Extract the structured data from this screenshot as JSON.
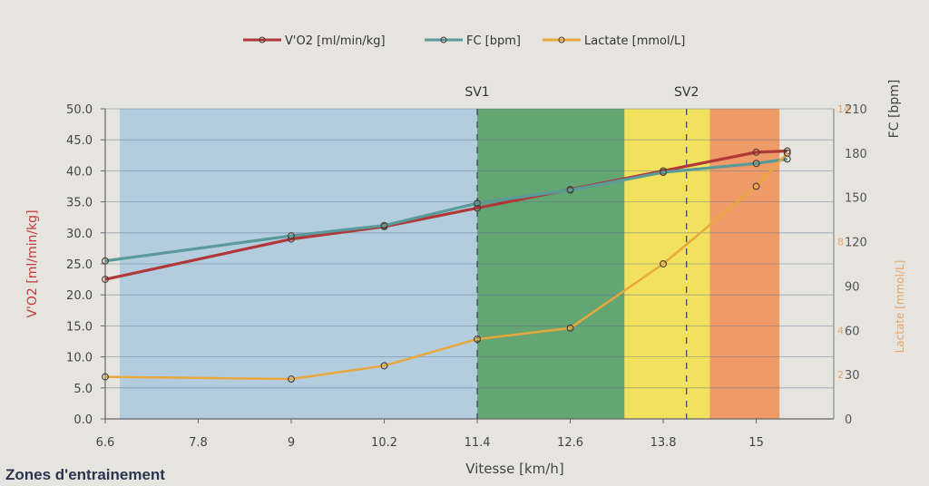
{
  "chart_data": {
    "type": "line",
    "x_axis": {
      "label": "Vitesse [km/h]",
      "range": [
        6.6,
        16.0
      ],
      "ticks": [
        "6.6",
        "7.8",
        "9",
        "10.2",
        "11.4",
        "12.6",
        "13.8",
        "15"
      ]
    },
    "y_left": {
      "label": "V'O2 [ml/min/kg]",
      "range": [
        0,
        50
      ],
      "ticks": [
        "0.0",
        "5.0",
        "10.0",
        "15.0",
        "20.0",
        "25.0",
        "30.0",
        "35.0",
        "40.0",
        "45.0",
        "50.0"
      ]
    },
    "y_right_fc": {
      "label": "FC [bpm]",
      "range": [
        0,
        210
      ],
      "ticks": [
        "0",
        "30",
        "60",
        "90",
        "120",
        "150",
        "180",
        "210"
      ]
    },
    "y_right_lactate": {
      "label": "Lactate [mmol/L]",
      "range": [
        0,
        14
      ],
      "ticks": [
        "2",
        "4",
        "8",
        "14"
      ]
    },
    "zones": [
      {
        "from": 6.6,
        "to": 11.4,
        "color": "#a9c9df"
      },
      {
        "from": 11.4,
        "to": 13.3,
        "color": "#4c9a62"
      },
      {
        "from": 13.3,
        "to": 14.4,
        "color": "#f2e046"
      },
      {
        "from": 14.4,
        "to": 15.3,
        "color": "#ee8e54"
      }
    ],
    "thresholds": [
      {
        "label": "SV1",
        "x": 11.4
      },
      {
        "label": "SV2",
        "x": 14.1
      }
    ],
    "series": [
      {
        "name": "V'O2 [ml/min/kg]",
        "axis": "y_left",
        "color": "#b03838",
        "points": [
          [
            6.6,
            22.5
          ],
          [
            9.0,
            29.0
          ],
          [
            10.2,
            31.0
          ],
          [
            11.4,
            34.0
          ],
          [
            12.6,
            37.0
          ],
          [
            13.8,
            40.0
          ],
          [
            15.0,
            43.0
          ],
          [
            15.4,
            43.2
          ]
        ]
      },
      {
        "name": "FC [bpm]",
        "axis": "y_right_fc",
        "color": "#5a9a9a",
        "points": [
          [
            6.6,
            107
          ],
          [
            9.0,
            124
          ],
          [
            10.2,
            131
          ],
          [
            11.4,
            146
          ],
          [
            12.6,
            155
          ],
          [
            13.8,
            167
          ],
          [
            15.0,
            173
          ],
          [
            15.4,
            176
          ]
        ]
      },
      {
        "name": "Lactate [mmol/L]",
        "axis": "y_right_lactate",
        "color": "#e8a83e",
        "points": [
          [
            6.6,
            1.9
          ],
          [
            9.0,
            1.8
          ],
          [
            10.2,
            2.4
          ],
          [
            11.4,
            3.6
          ],
          [
            12.6,
            4.1
          ],
          [
            13.8,
            7.0
          ],
          [
            15.0,
            10.5
          ],
          [
            15.4,
            12.0
          ]
        ]
      }
    ],
    "legend_position": "top-center",
    "grid": true
  },
  "below_chart": {
    "section_heading": "Zones d'entrainement"
  }
}
